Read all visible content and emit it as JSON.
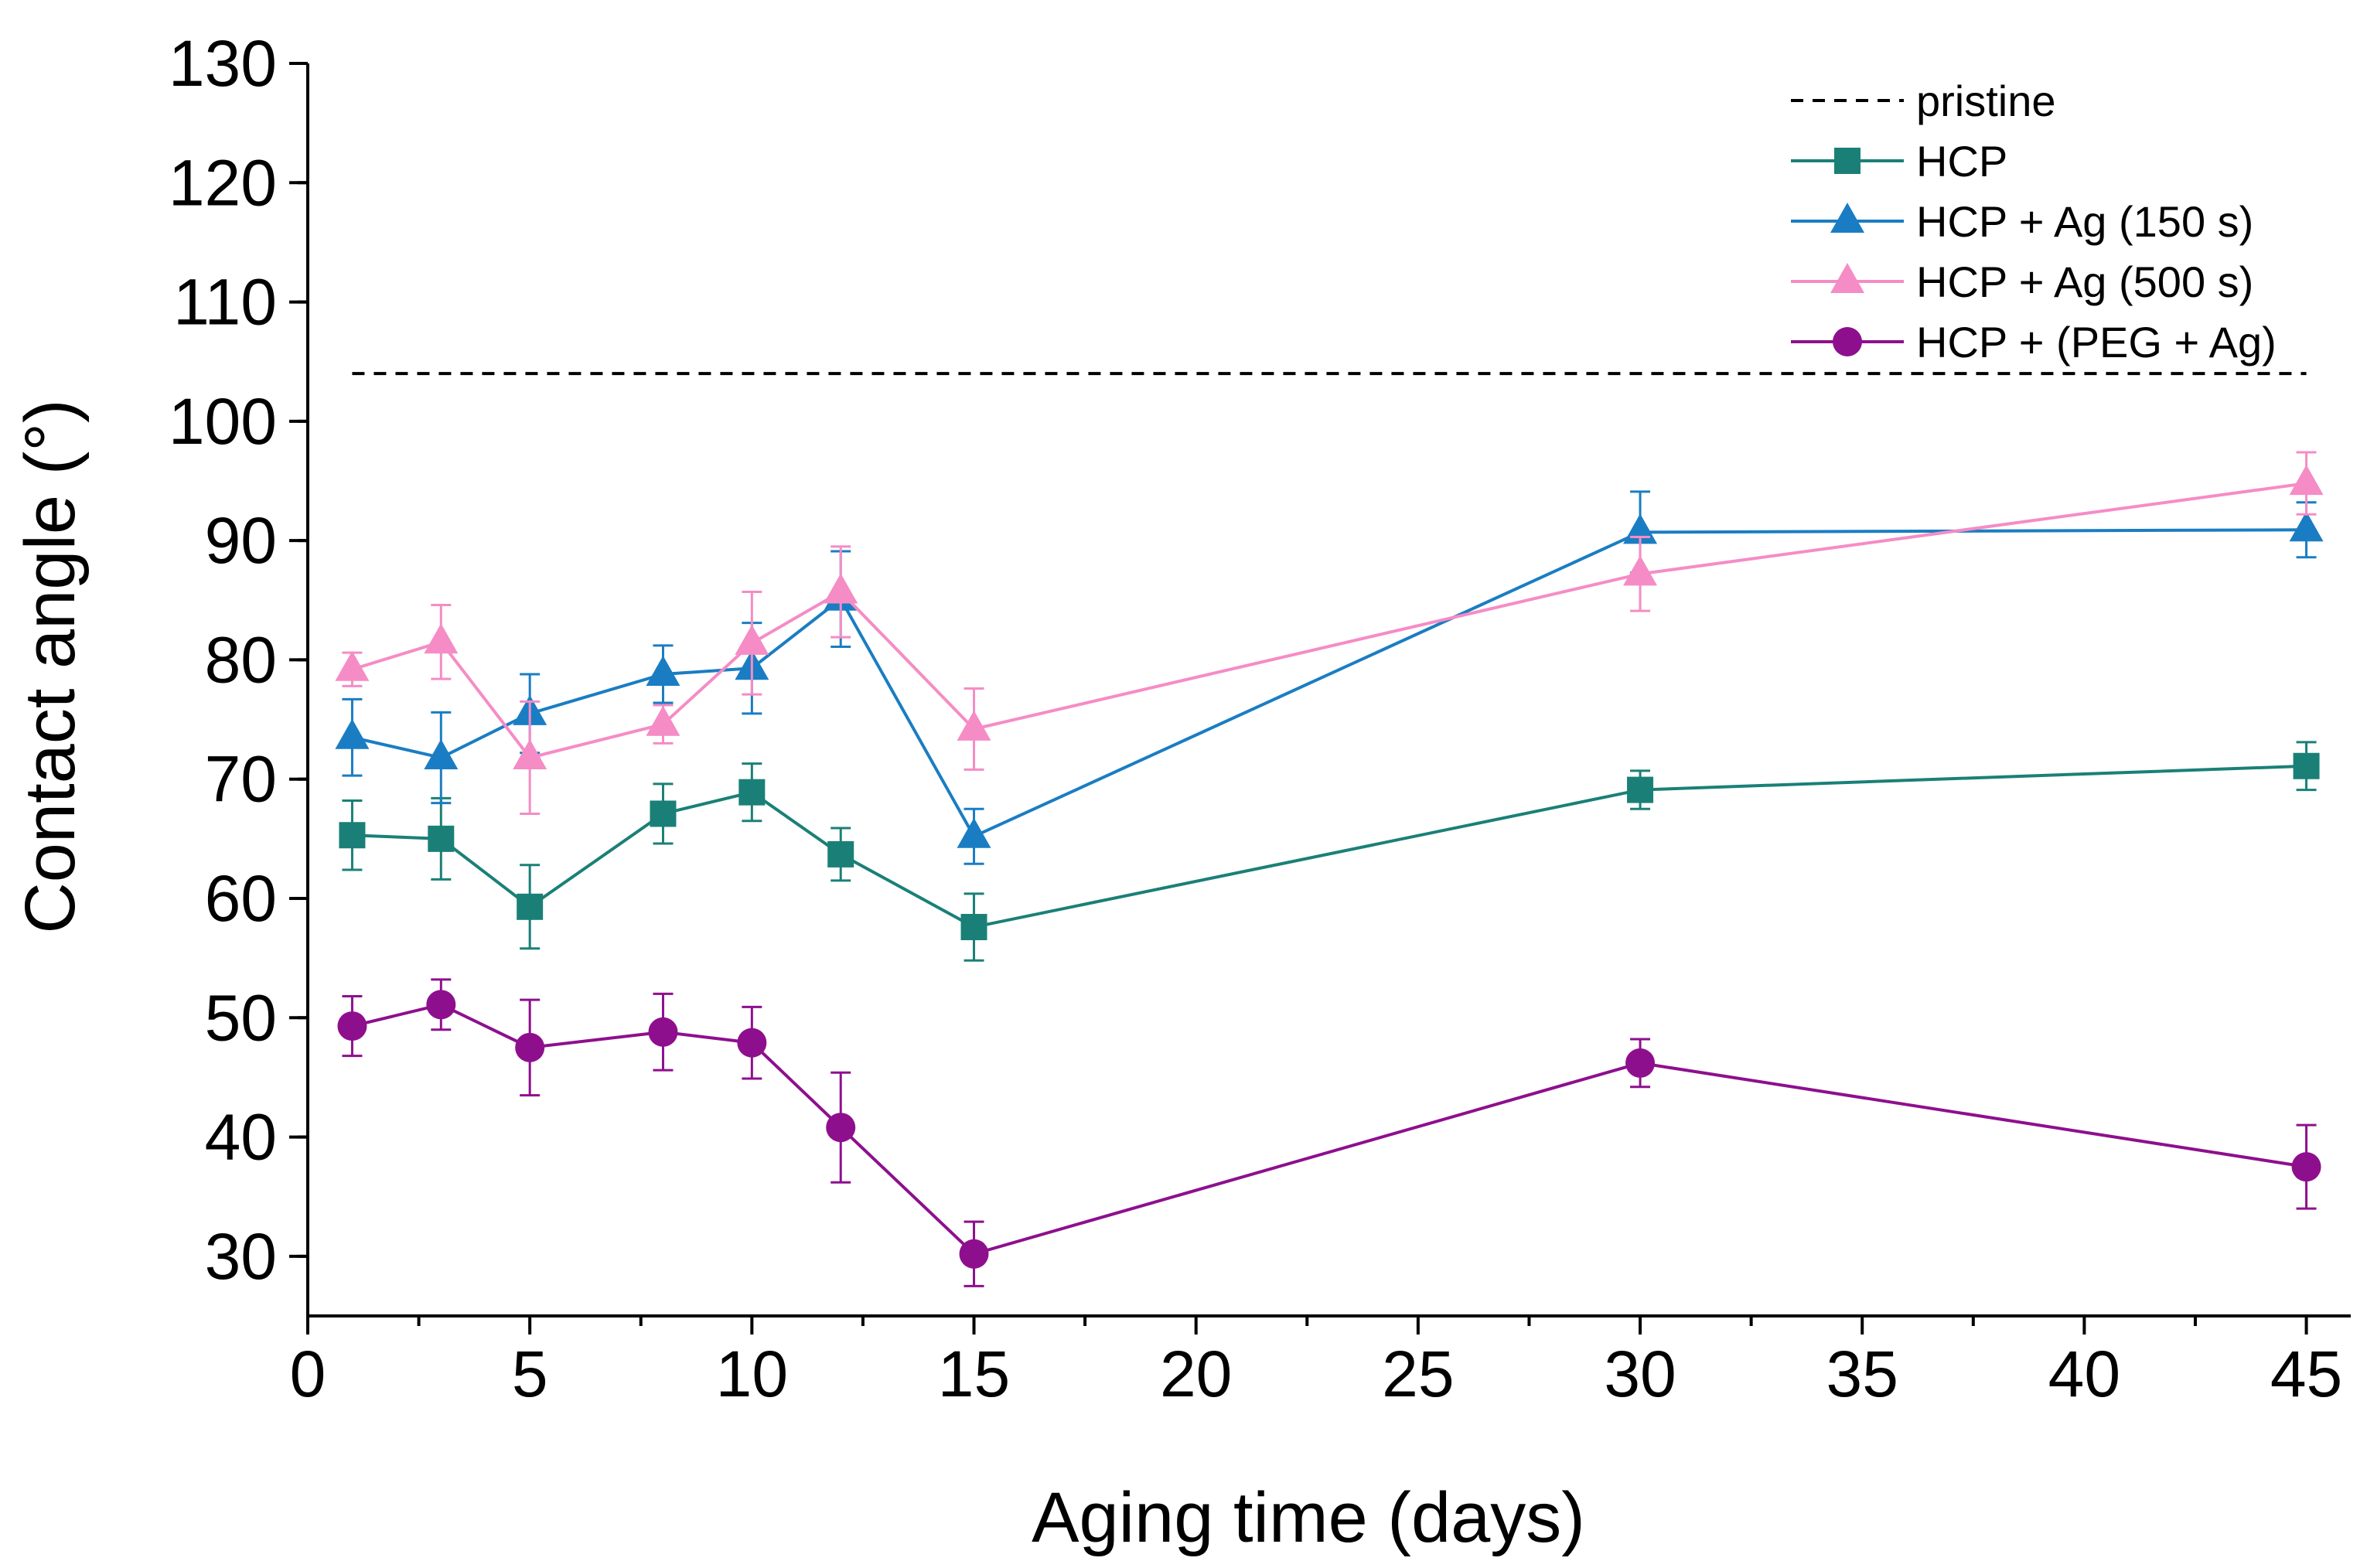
{
  "chart_data": {
    "type": "line",
    "title": "",
    "xlabel": "Aging time (days)",
    "ylabel": "Contact angle (°)",
    "xlim": [
      0,
      46
    ],
    "ylim": [
      25,
      130
    ],
    "xticks": [
      0,
      5,
      10,
      15,
      20,
      25,
      30,
      35,
      40,
      45
    ],
    "yticks": [
      30,
      40,
      50,
      60,
      70,
      80,
      90,
      100,
      110,
      120,
      130
    ],
    "xtick_labels": [
      "0",
      "5",
      "10",
      "15",
      "20",
      "25",
      "30",
      "35",
      "40",
      "45"
    ],
    "ytick_labels": [
      "30",
      "40",
      "50",
      "60",
      "70",
      "80",
      "90",
      "100",
      "110",
      "120",
      "130"
    ],
    "grid": false,
    "legend_position": "top-right",
    "reference_line": {
      "name": "pristine",
      "y": 104,
      "x_range": [
        1,
        45
      ],
      "color": "#000000",
      "style": "dashed"
    },
    "series": [
      {
        "name": "HCP",
        "marker": "square",
        "color": "#1A8077",
        "x": [
          1,
          3,
          5,
          8,
          10,
          12,
          15,
          30,
          45
        ],
        "y": [
          65.3,
          65.0,
          59.3,
          67.1,
          68.9,
          63.7,
          57.6,
          69.1,
          71.1
        ],
        "err": [
          2.9,
          3.4,
          3.5,
          2.5,
          2.4,
          2.2,
          2.8,
          1.6,
          2.0
        ]
      },
      {
        "name": "HCP + Ag (150 s)",
        "marker": "triangle",
        "color": "#1A7DC3",
        "x": [
          1,
          3,
          5,
          8,
          10,
          12,
          15,
          30,
          45
        ],
        "y": [
          73.5,
          71.8,
          75.5,
          78.8,
          79.3,
          85.1,
          65.2,
          90.7,
          90.9
        ],
        "err": [
          3.2,
          3.8,
          3.3,
          2.4,
          3.8,
          4.0,
          2.3,
          3.4,
          2.3
        ]
      },
      {
        "name": "HCP + Ag (500 s)",
        "marker": "triangle",
        "color": "#F58CC5",
        "x": [
          1,
          3,
          5,
          8,
          10,
          12,
          15,
          30,
          45
        ],
        "y": [
          79.2,
          81.5,
          71.8,
          74.6,
          81.4,
          85.7,
          74.2,
          87.2,
          94.8
        ],
        "err": [
          1.4,
          3.1,
          4.7,
          1.6,
          4.3,
          3.8,
          3.4,
          3.1,
          2.6
        ]
      },
      {
        "name": "HCP + (PEG + Ag)",
        "marker": "circle",
        "color": "#8E0F8E",
        "x": [
          1,
          3,
          5,
          8,
          10,
          12,
          15,
          30,
          45
        ],
        "y": [
          49.3,
          51.1,
          47.5,
          48.8,
          47.9,
          40.8,
          30.2,
          46.2,
          37.5
        ],
        "err": [
          2.5,
          2.1,
          4.0,
          3.2,
          3.0,
          4.6,
          2.7,
          2.0,
          3.5
        ]
      }
    ]
  }
}
